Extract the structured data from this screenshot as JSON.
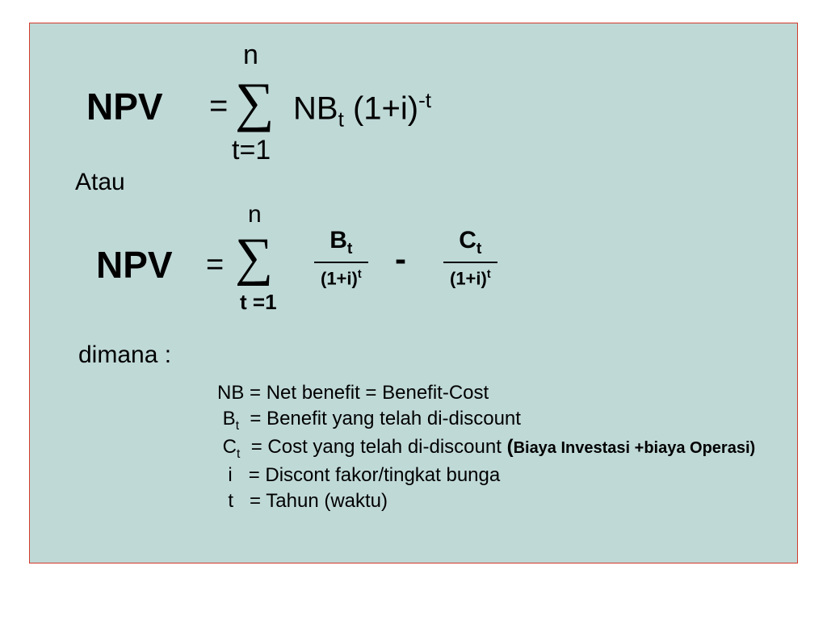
{
  "colors": {
    "page_bg": "#ffffff",
    "panel_bg": "#bfd9d7",
    "panel_border": "#d13a2a",
    "text": "#000000"
  },
  "labels": {
    "npv": "NPV",
    "equals": "=",
    "sigma": "∑",
    "n": "n",
    "t1_a": "t=1",
    "t1_b": "t =1",
    "minus": "-",
    "atau": "Atau",
    "dimana": "dimana :"
  },
  "formula1": {
    "nb": "NB",
    "nb_sub": "t",
    "base": "(1+i)",
    "exp": "-t"
  },
  "formula2": {
    "frac_b": {
      "num_base": "B",
      "num_sub": "t",
      "den_base": "(1+i)",
      "den_sup": "t"
    },
    "frac_c": {
      "num_base": "C",
      "num_sub": "t",
      "den_base": "(1+i)",
      "den_sup": "t"
    }
  },
  "definitions": {
    "nb_line": "NB = Net benefit = Benefit-Cost",
    "b": {
      "sym": "B",
      "sub": "t",
      "text": "= Benefit yang telah di-discount"
    },
    "c": {
      "sym": "C",
      "sub": "t",
      "text": "= Cost yang telah  di-discount",
      "paren": "(",
      "note": "Biaya Investasi +biaya Operasi)"
    },
    "i": {
      "sym": "i",
      "text": "= Discont fakor/tingkat bunga"
    },
    "t": {
      "sym": "t",
      "text": "= Tahun (waktu)"
    }
  },
  "typography": {
    "npv_fontsize": 46,
    "body_fontsize": 24,
    "section_fontsize": 30
  }
}
